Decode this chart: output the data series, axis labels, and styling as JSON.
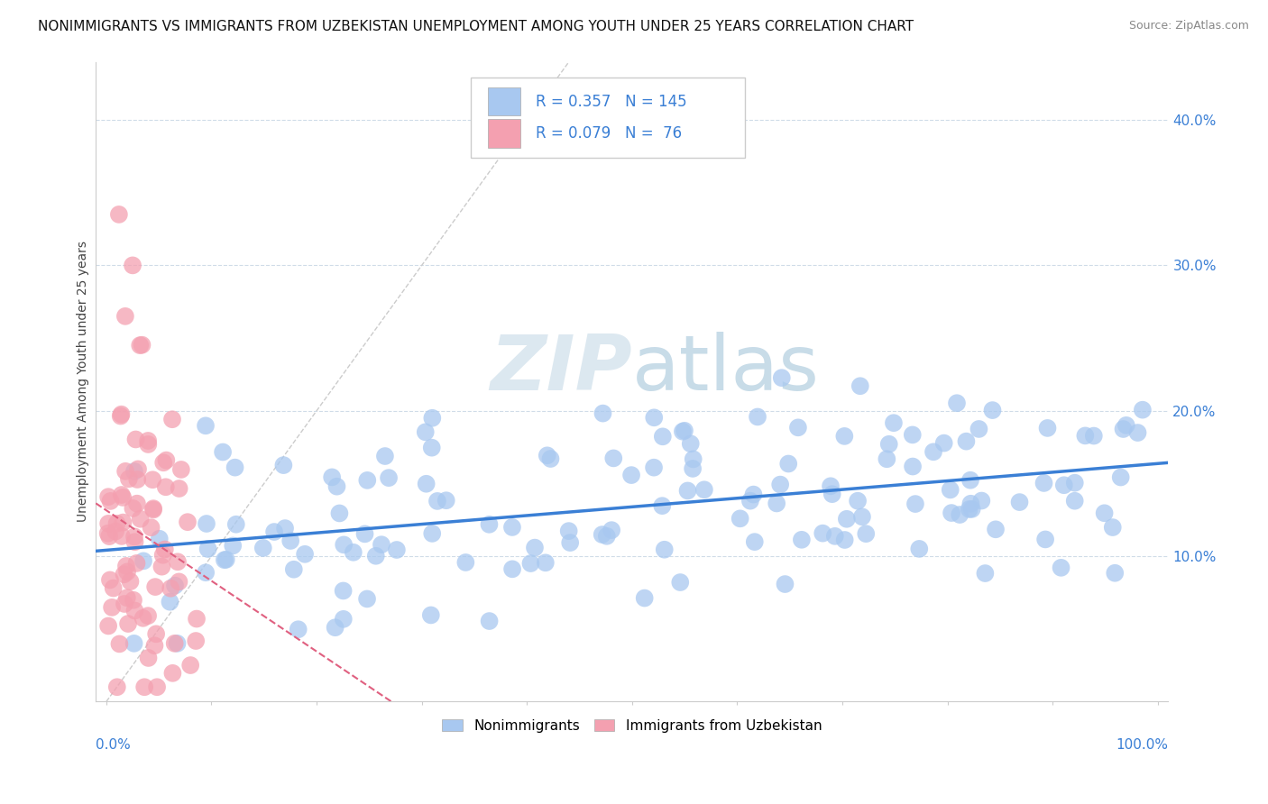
{
  "title": "NONIMMIGRANTS VS IMMIGRANTS FROM UZBEKISTAN UNEMPLOYMENT AMONG YOUTH UNDER 25 YEARS CORRELATION CHART",
  "source": "Source: ZipAtlas.com",
  "ylabel": "Unemployment Among Youth under 25 years",
  "ytick_values": [
    0.1,
    0.2,
    0.3,
    0.4
  ],
  "legend_nonimm": "Nonimmigrants",
  "legend_imm": "Immigrants from Uzbekistan",
  "R_nonimm": 0.357,
  "N_nonimm": 145,
  "R_imm": 0.079,
  "N_imm": 76,
  "nonimm_color": "#a8c8f0",
  "imm_color": "#f4a0b0",
  "trend_nonimm_color": "#3a7fd5",
  "trend_imm_color": "#e06080",
  "ref_line_color": "#cccccc",
  "grid_color": "#d0dce8",
  "background_color": "#ffffff",
  "watermark_color": "#dce8f0",
  "title_fontsize": 11,
  "source_fontsize": 9,
  "legend_box_R_color": "#3a7fd5",
  "legend_box_text_color": "#3a7fd5"
}
